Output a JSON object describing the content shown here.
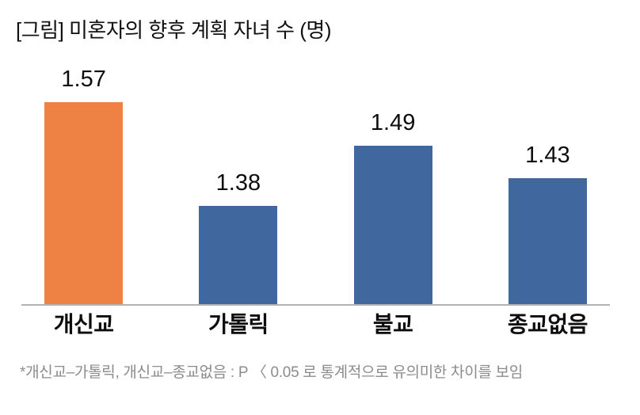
{
  "title": "[그림] 미혼자의 향후 계획 자녀 수 (명)",
  "footnote": "*개신교–가톨릭, 개신교–종교없음 : P 〈 0.05 로 통계적으로 유의미한 차이를 보임",
  "colors": {
    "highlight_bar": "#EE8144",
    "default_bar": "#41689E",
    "axis_line": "#B3B3B3",
    "title_text": "#111111",
    "value_text": "#0D0D0D",
    "footnote_text": "#8C8C8C",
    "background": "#FFFFFF"
  },
  "chart_data": {
    "type": "bar",
    "title": "[그림] 미혼자의 향후 계획 자녀 수 (명)",
    "categories": [
      "개신교",
      "가톨릭",
      "불교",
      "종교없음"
    ],
    "values": [
      1.57,
      1.38,
      1.49,
      1.43
    ],
    "value_labels": [
      "1.57",
      "1.38",
      "1.49",
      "1.43"
    ],
    "bar_colors": [
      "#EE8144",
      "#41689E",
      "#41689E",
      "#41689E"
    ],
    "xlabel": "",
    "ylabel": "",
    "unit": "명",
    "ylim": [
      1.2,
      1.6
    ],
    "grid": false,
    "legend": false,
    "data_labels": "above-bars",
    "highlighted_category": "개신교",
    "annotation": "*개신교–가톨릭, 개신교–종교없음 : P 〈 0.05 로 통계적으로 유의미한 차이를 보임"
  }
}
